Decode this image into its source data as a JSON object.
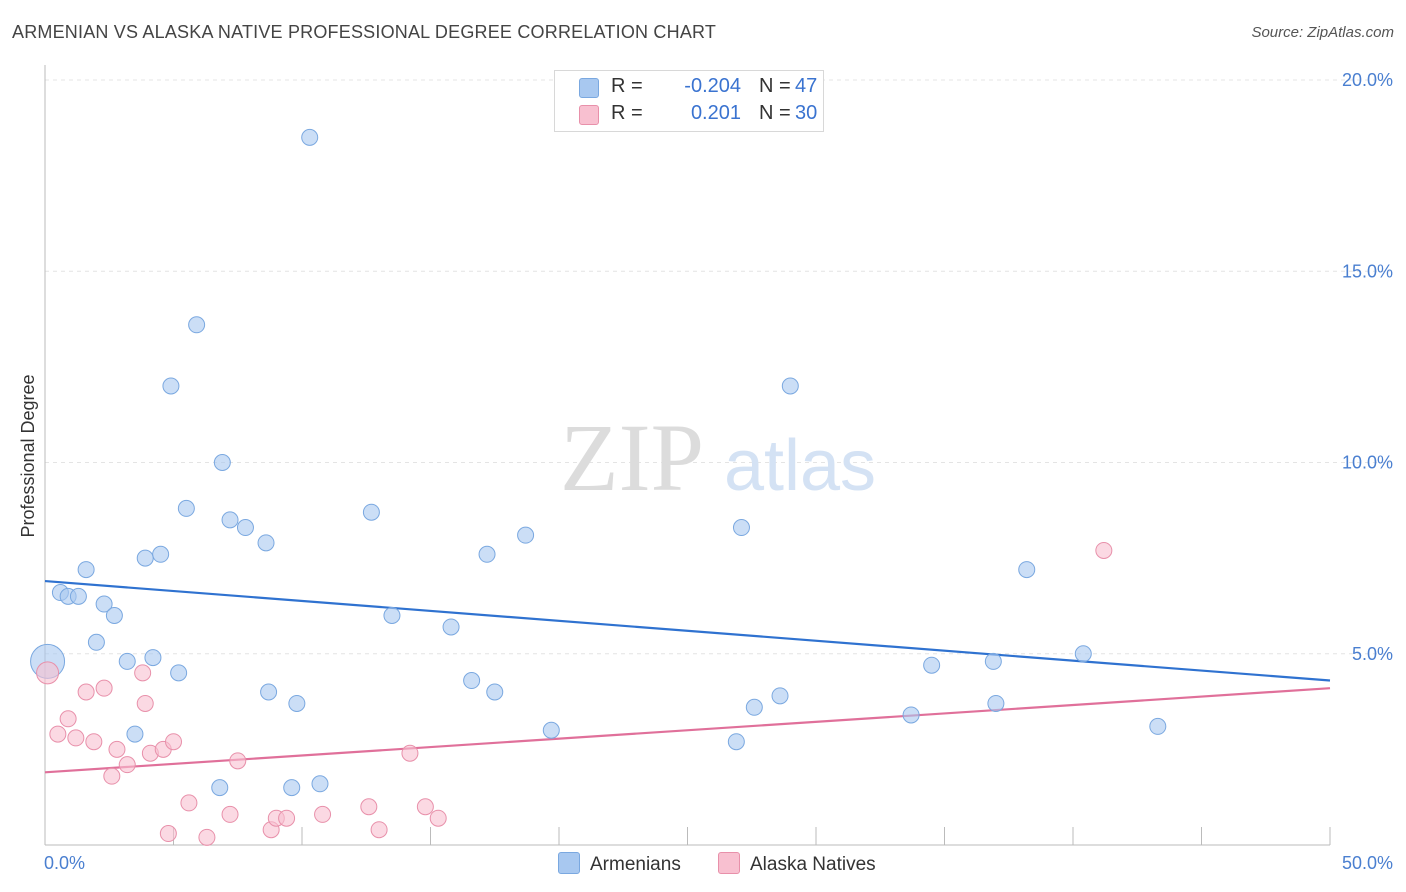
{
  "header": {
    "title": "ARMENIAN VS ALASKA NATIVE PROFESSIONAL DEGREE CORRELATION CHART",
    "source": "Source: ZipAtlas.com"
  },
  "legend": {
    "rows": [
      {
        "r_label": "R =",
        "r_value": "-0.204",
        "n_label": "N =",
        "n_value": "47",
        "color": "#a8c8f0",
        "border": "#7aa8e0"
      },
      {
        "r_label": "R =",
        "r_value": "0.201",
        "n_label": "N =",
        "n_value": "30",
        "color": "#f8c0d0",
        "border": "#e890aa"
      }
    ],
    "bottom": [
      {
        "label": "Armenians",
        "color": "#a8c8f0",
        "border": "#7aa8e0"
      },
      {
        "label": "Alaska Natives",
        "color": "#f8c0d0",
        "border": "#e890aa"
      }
    ]
  },
  "watermark": {
    "part1": "ZIP",
    "part2": "atlas"
  },
  "chart_data": {
    "type": "scatter",
    "title": "ARMENIAN VS ALASKA NATIVE PROFESSIONAL DEGREE CORRELATION CHART",
    "xlabel": "",
    "ylabel": "Professional Degree",
    "xlim": [
      0,
      50
    ],
    "ylim": [
      0,
      20
    ],
    "x_ticks": [
      "0.0%",
      "50.0%"
    ],
    "y_ticks": [
      "5.0%",
      "10.0%",
      "15.0%",
      "20.0%"
    ],
    "y_tick_values": [
      5,
      10,
      15,
      20
    ],
    "grid": true,
    "legend_placement": "top-center",
    "series": [
      {
        "name": "Armenians",
        "color": "#a8c8f0",
        "stroke": "#7aa8e0",
        "trend_color": "#2f72d0",
        "trend": [
          [
            0,
            6.9
          ],
          [
            50,
            4.3
          ]
        ],
        "points": [
          [
            0.1,
            4.8
          ],
          [
            0.6,
            6.6
          ],
          [
            0.9,
            6.5
          ],
          [
            1.3,
            6.5
          ],
          [
            1.6,
            7.2
          ],
          [
            2.0,
            5.3
          ],
          [
            2.3,
            6.3
          ],
          [
            2.7,
            6.0
          ],
          [
            3.2,
            4.8
          ],
          [
            3.5,
            2.9
          ],
          [
            3.9,
            7.5
          ],
          [
            4.2,
            4.9
          ],
          [
            4.5,
            7.6
          ],
          [
            4.9,
            12.0
          ],
          [
            5.2,
            4.5
          ],
          [
            5.5,
            8.8
          ],
          [
            5.9,
            13.6
          ],
          [
            6.8,
            1.5
          ],
          [
            6.9,
            10.0
          ],
          [
            7.2,
            8.5
          ],
          [
            7.8,
            8.3
          ],
          [
            8.6,
            7.9
          ],
          [
            8.7,
            4.0
          ],
          [
            9.6,
            1.5
          ],
          [
            9.8,
            3.7
          ],
          [
            10.3,
            18.5
          ],
          [
            10.7,
            1.6
          ],
          [
            12.7,
            8.7
          ],
          [
            13.5,
            6.0
          ],
          [
            15.8,
            5.7
          ],
          [
            16.6,
            4.3
          ],
          [
            17.2,
            7.6
          ],
          [
            17.5,
            4.0
          ],
          [
            18.7,
            8.1
          ],
          [
            19.7,
            3.0
          ],
          [
            26.9,
            2.7
          ],
          [
            27.1,
            8.3
          ],
          [
            27.6,
            3.6
          ],
          [
            28.6,
            3.9
          ],
          [
            29.0,
            12.0
          ],
          [
            33.7,
            3.4
          ],
          [
            34.5,
            4.7
          ],
          [
            36.9,
            4.8
          ],
          [
            37.0,
            3.7
          ],
          [
            38.2,
            7.2
          ],
          [
            40.4,
            5.0
          ],
          [
            43.3,
            3.1
          ]
        ]
      },
      {
        "name": "Alaska Natives",
        "color": "#f8c0d0",
        "stroke": "#e890aa",
        "trend_color": "#e0709a",
        "trend": [
          [
            0,
            1.9
          ],
          [
            50,
            4.1
          ]
        ],
        "points": [
          [
            0.1,
            4.5
          ],
          [
            0.5,
            2.9
          ],
          [
            0.9,
            3.3
          ],
          [
            1.2,
            2.8
          ],
          [
            1.6,
            4.0
          ],
          [
            1.9,
            2.7
          ],
          [
            2.3,
            4.1
          ],
          [
            2.6,
            1.8
          ],
          [
            2.8,
            2.5
          ],
          [
            3.2,
            2.1
          ],
          [
            3.8,
            4.5
          ],
          [
            3.9,
            3.7
          ],
          [
            4.1,
            2.4
          ],
          [
            4.6,
            2.5
          ],
          [
            4.8,
            0.3
          ],
          [
            5.0,
            2.7
          ],
          [
            5.6,
            1.1
          ],
          [
            6.3,
            0.2
          ],
          [
            7.2,
            0.8
          ],
          [
            7.5,
            2.2
          ],
          [
            8.8,
            0.4
          ],
          [
            9.0,
            0.7
          ],
          [
            9.4,
            0.7
          ],
          [
            10.8,
            0.8
          ],
          [
            12.6,
            1.0
          ],
          [
            13.0,
            0.4
          ],
          [
            14.2,
            2.4
          ],
          [
            14.8,
            1.0
          ],
          [
            15.3,
            0.7
          ],
          [
            41.2,
            7.7
          ]
        ]
      }
    ]
  }
}
